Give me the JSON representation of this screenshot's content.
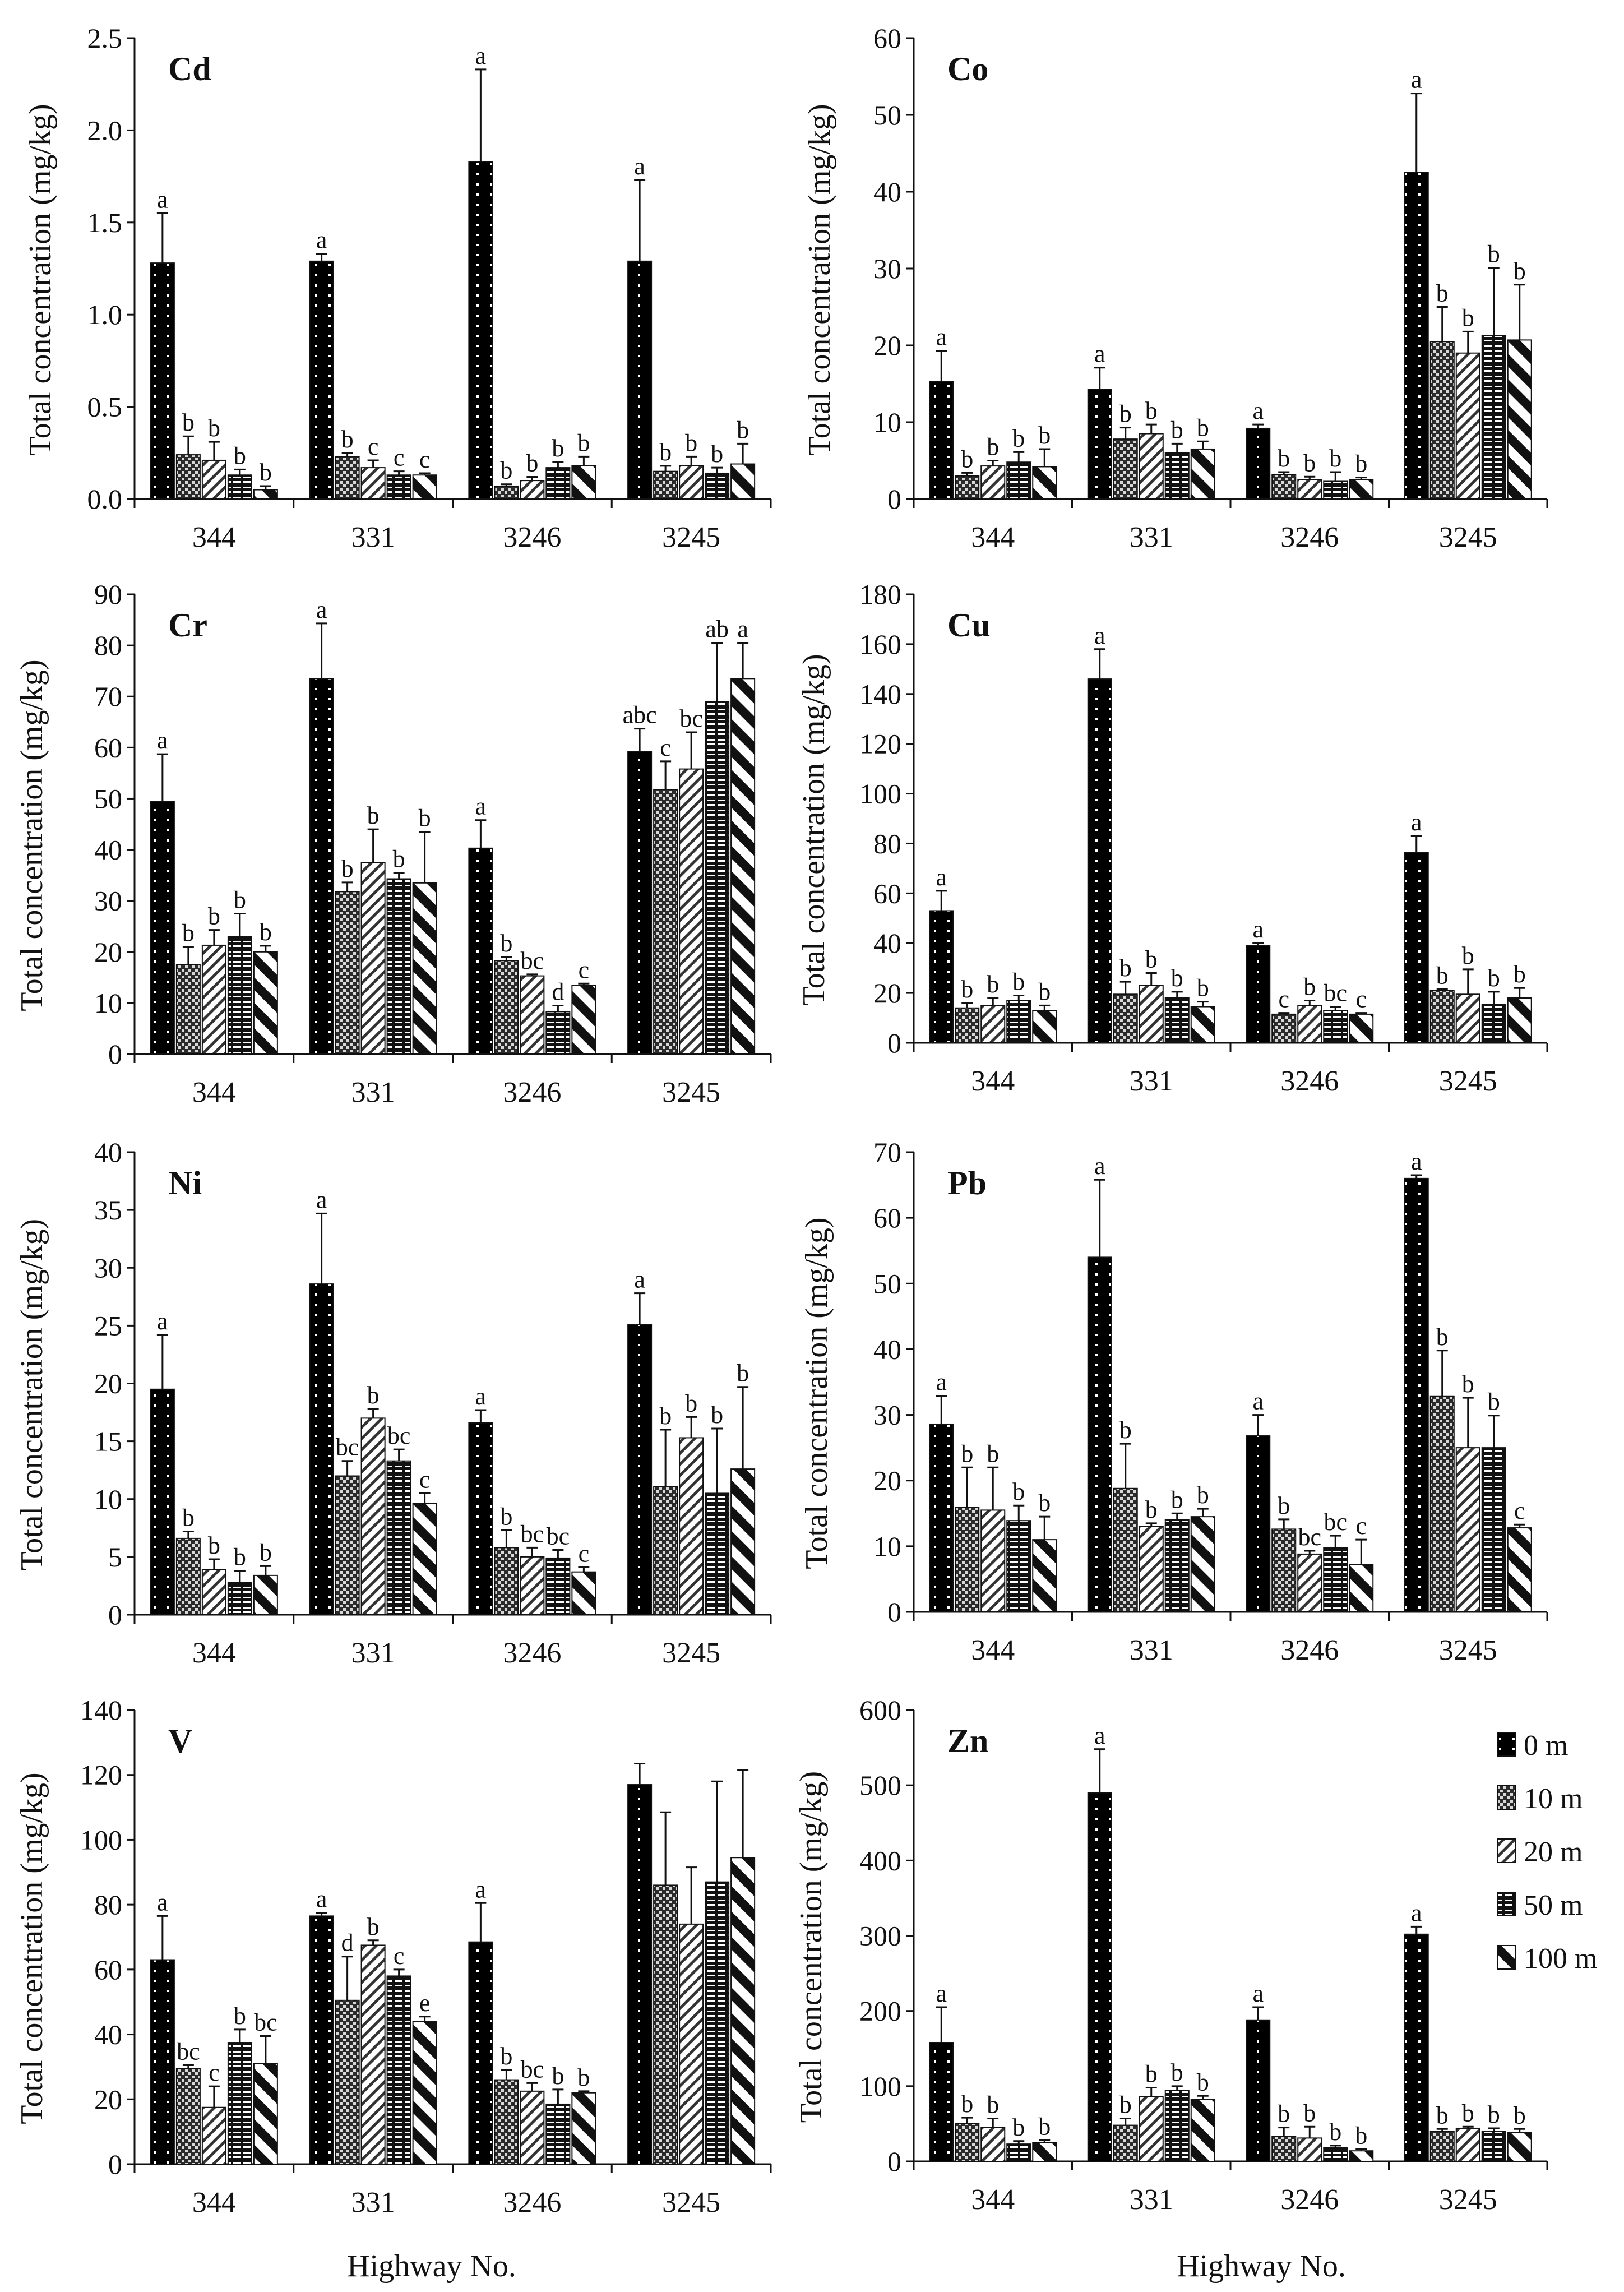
{
  "legend": [
    {
      "key": "0m",
      "label": "0 m"
    },
    {
      "key": "10m",
      "label": "10 m"
    },
    {
      "key": "20m",
      "label": "20 m"
    },
    {
      "key": "50m",
      "label": "50 m"
    },
    {
      "key": "100m",
      "label": "100 m"
    }
  ],
  "x_title": "Highway No.",
  "chart_data": [
    {
      "type": "bar",
      "title": "Cd",
      "ylabel": "Total concentration (mg/kg)",
      "xlabel": "Highway No.",
      "ylim": [
        0,
        2.5
      ],
      "yticks": [
        "0.0",
        "0.5",
        "1.0",
        "1.5",
        "2.0",
        "2.5"
      ],
      "categories": [
        "344",
        "331",
        "3246",
        "3245"
      ],
      "series": [
        {
          "name": "0 m",
          "values": [
            1.28,
            1.29,
            1.83,
            1.29
          ],
          "errors": [
            0.27,
            0.04,
            0.5,
            0.44
          ],
          "letters": [
            "a",
            "a",
            "a",
            "a"
          ]
        },
        {
          "name": "10 m",
          "values": [
            0.24,
            0.23,
            0.07,
            0.15
          ],
          "errors": [
            0.1,
            0.02,
            0.01,
            0.03
          ],
          "letters": [
            "b",
            "b",
            "b",
            "b"
          ]
        },
        {
          "name": "20 m",
          "values": [
            0.21,
            0.17,
            0.1,
            0.18
          ],
          "errors": [
            0.1,
            0.04,
            0.02,
            0.05
          ],
          "letters": [
            "b",
            "c",
            "b",
            "b"
          ]
        },
        {
          "name": "50 m",
          "values": [
            0.13,
            0.13,
            0.17,
            0.14
          ],
          "errors": [
            0.03,
            0.02,
            0.03,
            0.03
          ],
          "letters": [
            "b",
            "c",
            "b",
            "b"
          ]
        },
        {
          "name": "100 m",
          "values": [
            0.05,
            0.13,
            0.18,
            0.19
          ],
          "errors": [
            0.02,
            0.01,
            0.05,
            0.11
          ],
          "letters": [
            "b",
            "c",
            "b",
            "b"
          ]
        }
      ]
    },
    {
      "type": "bar",
      "title": "Co",
      "ylabel": "Total concentration (mg/kg)",
      "xlabel": "Highway No.",
      "ylim": [
        0,
        60
      ],
      "yticks": [
        "0",
        "10",
        "20",
        "30",
        "40",
        "50",
        "60"
      ],
      "categories": [
        "344",
        "331",
        "3246",
        "3245"
      ],
      "series": [
        {
          "name": "0 m",
          "values": [
            15.3,
            14.3,
            9.2,
            42.5
          ],
          "errors": [
            4,
            2.8,
            0.5,
            10.3
          ],
          "letters": [
            "a",
            "a",
            "a",
            "a"
          ]
        },
        {
          "name": "10 m",
          "values": [
            3,
            7.8,
            3.2,
            20.5
          ],
          "errors": [
            0.4,
            1.5,
            0.3,
            4.5
          ],
          "letters": [
            "b",
            "b",
            "b",
            "b"
          ]
        },
        {
          "name": "20 m",
          "values": [
            4.3,
            8.5,
            2.5,
            19
          ],
          "errors": [
            0.7,
            1.2,
            0.4,
            2.8
          ],
          "letters": [
            "b",
            "b",
            "b",
            "b"
          ]
        },
        {
          "name": "50 m",
          "values": [
            4.8,
            6,
            2.3,
            21.3
          ],
          "errors": [
            1.3,
            1.2,
            1.2,
            8.8
          ],
          "letters": [
            "b",
            "b",
            "b",
            "b"
          ]
        },
        {
          "name": "100 m",
          "values": [
            4.2,
            6.5,
            2.5,
            20.7
          ],
          "errors": [
            2.3,
            1,
            0.3,
            7.2
          ],
          "letters": [
            "b",
            "b",
            "b",
            "b"
          ]
        }
      ]
    },
    {
      "type": "bar",
      "title": "Cr",
      "ylabel": "Total concentration (mg/kg)",
      "xlabel": "Highway No.",
      "ylim": [
        0,
        90
      ],
      "yticks": [
        "0",
        "10",
        "20",
        "30",
        "40",
        "50",
        "60",
        "70",
        "80",
        "90"
      ],
      "categories": [
        "344",
        "331",
        "3246",
        "3245"
      ],
      "series": [
        {
          "name": "0 m",
          "values": [
            49.5,
            73.5,
            40.3,
            59.2
          ],
          "errors": [
            9.2,
            10.8,
            5.5,
            4.5
          ],
          "letters": [
            "a",
            "a",
            "a",
            "abc"
          ]
        },
        {
          "name": "10 m",
          "values": [
            17.5,
            31.8,
            18.3,
            51.8
          ],
          "errors": [
            3.5,
            1.8,
            0.7,
            5.5
          ],
          "letters": [
            "b",
            "b",
            "b",
            "c"
          ]
        },
        {
          "name": "20 m",
          "values": [
            21.3,
            37.5,
            15.3,
            55.8
          ],
          "errors": [
            3,
            6.5,
            0.3,
            7.2
          ],
          "letters": [
            "b",
            "b",
            "bc",
            "bc"
          ]
        },
        {
          "name": "50 m",
          "values": [
            23,
            34.3,
            8.3,
            69
          ],
          "errors": [
            4.5,
            1.2,
            1.2,
            11.5
          ],
          "letters": [
            "b",
            "b",
            "d",
            "ab"
          ]
        },
        {
          "name": "100 m",
          "values": [
            20,
            33.5,
            13.5,
            73.5
          ],
          "errors": [
            1.2,
            10,
            0.3,
            7
          ],
          "letters": [
            "b",
            "b",
            "c",
            "a"
          ]
        }
      ]
    },
    {
      "type": "bar",
      "title": "Cu",
      "ylabel": "Total concentration (mg/kg)",
      "xlabel": "Highway No.",
      "ylim": [
        0,
        180
      ],
      "yticks": [
        "0",
        "20",
        "40",
        "60",
        "80",
        "100",
        "120",
        "140",
        "160",
        "180"
      ],
      "categories": [
        "344",
        "331",
        "3246",
        "3245"
      ],
      "series": [
        {
          "name": "0 m",
          "values": [
            53,
            146,
            39,
            76.5
          ],
          "errors": [
            8,
            12,
            1,
            6.5
          ],
          "letters": [
            "a",
            "a",
            "a",
            "a"
          ]
        },
        {
          "name": "10 m",
          "values": [
            14,
            19.5,
            11.5,
            21
          ],
          "errors": [
            2,
            5,
            0.5,
            0.5
          ],
          "letters": [
            "b",
            "b",
            "c",
            "b"
          ]
        },
        {
          "name": "20 m",
          "values": [
            15,
            23,
            15,
            19.5
          ],
          "errors": [
            3,
            5,
            2,
            10
          ],
          "letters": [
            "b",
            "b",
            "b",
            "b"
          ]
        },
        {
          "name": "50 m",
          "values": [
            17,
            18,
            13,
            15.5
          ],
          "errors": [
            2,
            2.5,
            1.5,
            5
          ],
          "letters": [
            "b",
            "b",
            "bc",
            "b"
          ]
        },
        {
          "name": "100 m",
          "values": [
            13,
            14.5,
            11.5,
            18
          ],
          "errors": [
            2,
            2,
            0.5,
            4
          ],
          "letters": [
            "b",
            "b",
            "c",
            "b"
          ]
        }
      ]
    },
    {
      "type": "bar",
      "title": "Ni",
      "ylabel": "Total concentration (mg/kg)",
      "xlabel": "Highway No.",
      "ylim": [
        0,
        40
      ],
      "yticks": [
        "0",
        "5",
        "10",
        "15",
        "20",
        "25",
        "30",
        "35",
        "40"
      ],
      "categories": [
        "344",
        "331",
        "3246",
        "3245"
      ],
      "series": [
        {
          "name": "0 m",
          "values": [
            19.5,
            28.6,
            16.6,
            25.1
          ],
          "errors": [
            4.7,
            6.1,
            1.1,
            2.7
          ],
          "letters": [
            "a",
            "a",
            "a",
            "a"
          ]
        },
        {
          "name": "10 m",
          "values": [
            6.6,
            12,
            5.8,
            11.1
          ],
          "errors": [
            0.6,
            1.3,
            1.5,
            4.9
          ],
          "letters": [
            "b",
            "bc",
            "b",
            "b"
          ]
        },
        {
          "name": "20 m",
          "values": [
            3.9,
            17,
            5,
            15.3
          ],
          "errors": [
            0.9,
            0.8,
            0.8,
            1.8
          ],
          "letters": [
            "b",
            "b",
            "bc",
            "b"
          ]
        },
        {
          "name": "50 m",
          "values": [
            2.8,
            13.3,
            4.9,
            10.5
          ],
          "errors": [
            1,
            1,
            0.7,
            5.6
          ],
          "letters": [
            "b",
            "bc",
            "bc",
            "b"
          ]
        },
        {
          "name": "100 m",
          "values": [
            3.4,
            9.6,
            3.7,
            12.6
          ],
          "errors": [
            0.8,
            0.9,
            0.4,
            7.1
          ],
          "letters": [
            "b",
            "c",
            "c",
            "b"
          ]
        }
      ]
    },
    {
      "type": "bar",
      "title": "Pb",
      "ylabel": "Total concentration (mg/kg)",
      "xlabel": "Highway No.",
      "ylim": [
        0,
        70
      ],
      "yticks": [
        "0",
        "10",
        "20",
        "30",
        "40",
        "50",
        "60",
        "70"
      ],
      "categories": [
        "344",
        "331",
        "3246",
        "3245"
      ],
      "series": [
        {
          "name": "0 m",
          "values": [
            28.6,
            54,
            26.8,
            66
          ],
          "errors": [
            4.3,
            11.8,
            3.2,
            0.5
          ],
          "letters": [
            "a",
            "a",
            "a",
            "a"
          ]
        },
        {
          "name": "10 m",
          "values": [
            15.9,
            18.8,
            12.6,
            32.8
          ],
          "errors": [
            6.1,
            6.8,
            1.5,
            7
          ],
          "letters": [
            "b",
            "b",
            "b",
            "b"
          ]
        },
        {
          "name": "20 m",
          "values": [
            15.5,
            13,
            8.8,
            25
          ],
          "errors": [
            6.5,
            0.5,
            0.5,
            7.6
          ],
          "letters": [
            "b",
            "b",
            "bc",
            "b"
          ]
        },
        {
          "name": "50 m",
          "values": [
            13.9,
            14,
            9.8,
            25
          ],
          "errors": [
            2.3,
            1,
            1.8,
            4.9
          ],
          "letters": [
            "b",
            "b",
            "bc",
            "b"
          ]
        },
        {
          "name": "100 m",
          "values": [
            11,
            14.5,
            7.2,
            12.8
          ],
          "errors": [
            3.5,
            1.2,
            3.8,
            0.5
          ],
          "letters": [
            "b",
            "b",
            "c",
            "c"
          ]
        }
      ]
    },
    {
      "type": "bar",
      "title": "V",
      "ylabel": "Total concentration (mg/kg)",
      "xlabel": "Highway No.",
      "ylim": [
        0,
        140
      ],
      "yticks": [
        "0",
        "20",
        "40",
        "60",
        "80",
        "100",
        "120",
        "140"
      ],
      "categories": [
        "344",
        "331",
        "3246",
        "3245"
      ],
      "series": [
        {
          "name": "0 m",
          "values": [
            63,
            76.5,
            68.5,
            117
          ],
          "errors": [
            13.5,
            1,
            12,
            6.5
          ],
          "letters": [
            "a",
            "a",
            "a",
            ""
          ]
        },
        {
          "name": "10 m",
          "values": [
            29.5,
            50.5,
            26,
            86
          ],
          "errors": [
            1,
            13.5,
            3,
            22.5
          ],
          "letters": [
            "bc",
            "d",
            "b",
            ""
          ]
        },
        {
          "name": "20 m",
          "values": [
            17.5,
            67.5,
            22.5,
            74
          ],
          "errors": [
            6.5,
            1.5,
            2.5,
            17.5
          ],
          "letters": [
            "c",
            "b",
            "bc",
            ""
          ]
        },
        {
          "name": "50 m",
          "values": [
            37.5,
            58,
            18.5,
            87
          ],
          "errors": [
            4,
            2,
            4.5,
            31
          ],
          "letters": [
            "b",
            "c",
            "b",
            ""
          ]
        },
        {
          "name": "100 m",
          "values": [
            31,
            44,
            22,
            94.5
          ],
          "errors": [
            8.5,
            1.5,
            0.5,
            27
          ],
          "letters": [
            "bc",
            "e",
            "b",
            ""
          ]
        }
      ]
    },
    {
      "type": "bar",
      "title": "Zn",
      "ylabel": "Total concentration (mg/kg)",
      "xlabel": "Highway No.",
      "ylim": [
        0,
        600
      ],
      "yticks": [
        "0",
        "100",
        "200",
        "300",
        "400",
        "500",
        "600"
      ],
      "categories": [
        "344",
        "331",
        "3246",
        "3245"
      ],
      "series": [
        {
          "name": "0 m",
          "values": [
            158,
            490,
            188,
            302
          ],
          "errors": [
            47,
            58,
            17,
            10
          ],
          "letters": [
            "a",
            "a",
            "a",
            "a"
          ]
        },
        {
          "name": "10 m",
          "values": [
            50,
            48,
            33,
            40
          ],
          "errors": [
            8,
            9,
            12,
            3
          ],
          "letters": [
            "b",
            "b",
            "b",
            "b"
          ]
        },
        {
          "name": "20 m",
          "values": [
            45,
            86,
            31,
            44
          ],
          "errors": [
            12,
            12,
            15,
            2
          ],
          "letters": [
            "b",
            "b",
            "b",
            "b"
          ]
        },
        {
          "name": "50 m",
          "values": [
            23,
            94,
            18,
            40
          ],
          "errors": [
            4,
            6,
            3,
            4
          ],
          "letters": [
            "b",
            "b",
            "b",
            "b"
          ]
        },
        {
          "name": "100 m",
          "values": [
            25,
            82,
            14,
            38
          ],
          "errors": [
            3,
            5,
            2,
            5
          ],
          "letters": [
            "b",
            "b",
            "b",
            "b"
          ]
        }
      ]
    }
  ]
}
